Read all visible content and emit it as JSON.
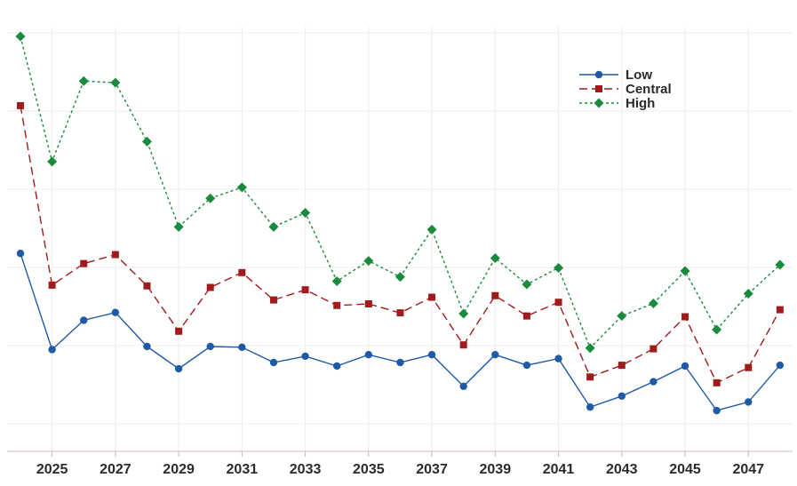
{
  "chart_data": {
    "type": "line",
    "title": "",
    "xlabel": "",
    "ylabel": "",
    "x": [
      2024,
      2025,
      2026,
      2027,
      2028,
      2029,
      2030,
      2031,
      2032,
      2033,
      2034,
      2035,
      2036,
      2037,
      2038,
      2039,
      2040,
      2041,
      2042,
      2043,
      2044,
      2045,
      2046,
      2047,
      2048
    ],
    "x_ticks": [
      "2025",
      "2027",
      "2029",
      "2031",
      "2033",
      "2035",
      "2037",
      "2039",
      "2041",
      "2043",
      "2045",
      "2047"
    ],
    "xlim": [
      2023.75,
      2048.4
    ],
    "ylim": [
      0,
      100
    ],
    "y_axis_labels": "none",
    "grid": true,
    "legend_position": "top-right",
    "series": [
      {
        "name": "Low",
        "color": "#1f5aa6",
        "marker": "circle",
        "line_style": "solid",
        "values": [
          45.4,
          20.8,
          28.3,
          30.3,
          21.6,
          15.9,
          21.6,
          21.4,
          17.5,
          19.1,
          16.6,
          19.5,
          17.5,
          19.5,
          11.4,
          19.5,
          16.8,
          18.5,
          6.1,
          8.9,
          12.6,
          16.6,
          5.2,
          7.4,
          16.8
        ]
      },
      {
        "name": "Central",
        "color": "#a01b1b",
        "marker": "square",
        "line_style": "dashed",
        "values": [
          83.2,
          37.3,
          42.8,
          45.1,
          37.1,
          25.5,
          36.7,
          40.5,
          33.5,
          36.1,
          32.1,
          32.5,
          30.2,
          34.2,
          22.0,
          34.6,
          29.4,
          32.9,
          13.8,
          16.8,
          21.0,
          29.2,
          12.3,
          16.2,
          31.0
        ]
      },
      {
        "name": "High",
        "color": "#1a8a3c",
        "marker": "diamond",
        "line_style": "dotted",
        "values": [
          100.9,
          68.9,
          89.5,
          89.1,
          74.0,
          52.2,
          59.5,
          62.3,
          52.2,
          55.8,
          38.3,
          43.5,
          39.4,
          51.5,
          30.0,
          44.2,
          37.5,
          41.7,
          21.2,
          29.4,
          32.6,
          40.9,
          25.9,
          35.1,
          42.5
        ]
      }
    ]
  }
}
